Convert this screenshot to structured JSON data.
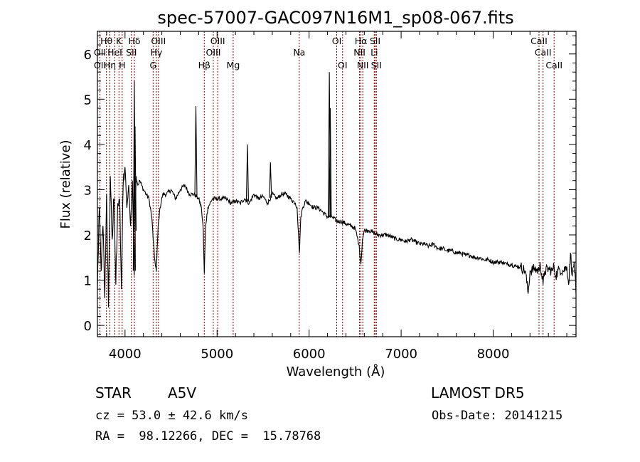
{
  "chart_data": {
    "type": "line",
    "title": "spec-57007-GAC097N16M1_sp08-067.fits",
    "xlabel": "Wavelength (Å)",
    "ylabel": "Flux (relative)",
    "xlim": [
      3700,
      8900
    ],
    "ylim": [
      -0.25,
      6.5
    ],
    "xticks": [
      4000,
      5000,
      6000,
      7000,
      8000
    ],
    "yticks": [
      0,
      1,
      2,
      3,
      4,
      5,
      6
    ],
    "grid": false,
    "series_color": "#000000",
    "marker_color": "#8b0000",
    "spectrum": {
      "x": [
        3700,
        3720,
        3740,
        3760,
        3780,
        3800,
        3820,
        3840,
        3860,
        3880,
        3900,
        3920,
        3940,
        3960,
        3980,
        4000,
        4020,
        4040,
        4060,
        4080,
        4100,
        4120,
        4140,
        4160,
        4180,
        4200,
        4230,
        4260,
        4290,
        4320,
        4340,
        4360,
        4380,
        4410,
        4450,
        4500,
        4550,
        4600,
        4650,
        4700,
        4750,
        4800,
        4830,
        4850,
        4861,
        4875,
        4900,
        4950,
        5000,
        5050,
        5100,
        5150,
        5200,
        5250,
        5300,
        5350,
        5400,
        5450,
        5500,
        5550,
        5600,
        5650,
        5700,
        5750,
        5800,
        5850,
        5870,
        5890,
        5895,
        5910,
        5930,
        5960,
        6000,
        6050,
        6100,
        6150,
        6200,
        6250,
        6300,
        6350,
        6400,
        6450,
        6500,
        6540,
        6563,
        6580,
        6600,
        6620,
        6650,
        6700,
        6750,
        6800,
        6850,
        6900,
        6950,
        7000,
        7050,
        7100,
        7150,
        7200,
        7250,
        7300,
        7350,
        7400,
        7450,
        7500,
        7550,
        7600,
        7650,
        7700,
        7750,
        7800,
        7850,
        7900,
        7950,
        8000,
        8050,
        8100,
        8150,
        8200,
        8250,
        8300,
        8350,
        8380,
        8400,
        8450,
        8498,
        8510,
        8542,
        8560,
        8600,
        8640,
        8662,
        8680,
        8720,
        8760,
        8800,
        8820,
        8840,
        8860,
        8880,
        8900
      ],
      "y": [
        0.8,
        2.6,
        1.2,
        2.2,
        0.6,
        2.9,
        0.4,
        3.3,
        1.9,
        2.8,
        0.9,
        2.7,
        2.8,
        0.8,
        3.1,
        3.5,
        2.6,
        3.1,
        2.2,
        3.2,
        1.1,
        3.3,
        3.1,
        3.2,
        3.1,
        3.0,
        2.9,
        2.8,
        2.4,
        1.5,
        1.2,
        2.2,
        2.6,
        2.9,
        2.9,
        3.0,
        2.8,
        3.0,
        3.1,
        2.9,
        2.9,
        2.8,
        2.6,
        2.1,
        1.15,
        2.2,
        2.6,
        2.8,
        2.8,
        2.8,
        2.8,
        2.7,
        2.75,
        2.7,
        2.8,
        2.7,
        2.9,
        2.8,
        2.85,
        2.7,
        2.9,
        2.8,
        2.9,
        2.9,
        2.8,
        2.7,
        2.6,
        1.8,
        1.6,
        2.4,
        2.6,
        2.75,
        2.7,
        2.6,
        2.6,
        2.5,
        2.4,
        2.4,
        2.3,
        2.3,
        2.25,
        2.2,
        2.15,
        1.8,
        1.35,
        1.9,
        2.1,
        2.1,
        2.1,
        2.05,
        2.0,
        2.0,
        2.0,
        1.95,
        1.9,
        1.9,
        1.85,
        1.9,
        1.85,
        1.8,
        1.8,
        1.75,
        1.8,
        1.7,
        1.7,
        1.65,
        1.65,
        1.6,
        1.6,
        1.55,
        1.55,
        1.5,
        1.5,
        1.45,
        1.45,
        1.4,
        1.4,
        1.4,
        1.35,
        1.35,
        1.3,
        1.3,
        1.2,
        0.7,
        1.2,
        1.25,
        1.2,
        1.4,
        0.9,
        1.2,
        1.25,
        1.2,
        1.3,
        1.1,
        1.25,
        1.2,
        1.3,
        0.9,
        1.6,
        1.1,
        1.4,
        0.7
      ]
    },
    "emission_spikes": [
      {
        "x": 4101,
        "y": 5.4
      },
      {
        "x": 4109,
        "y": 4.4
      },
      {
        "x": 4770,
        "y": 4.85
      },
      {
        "x": 5330,
        "y": 4.0
      },
      {
        "x": 5580,
        "y": 3.6
      },
      {
        "x": 6220,
        "y": 5.6
      },
      {
        "x": 6230,
        "y": 4.8
      }
    ],
    "line_markers": [
      {
        "label": "Hθ",
        "x": 3798,
        "row": 1
      },
      {
        "label": "OII",
        "x": 3727,
        "row": 2
      },
      {
        "label": "OII",
        "x": 3727,
        "row": 3
      },
      {
        "label": "Hη",
        "x": 3835,
        "row": 3
      },
      {
        "label": "HeI",
        "x": 3889,
        "row": 2
      },
      {
        "label": "K",
        "x": 3934,
        "row": 1
      },
      {
        "label": "H",
        "x": 3969,
        "row": 3
      },
      {
        "label": "Hδ",
        "x": 4102,
        "row": 1
      },
      {
        "label": "SII",
        "x": 4069,
        "row": 2
      },
      {
        "label": "OIII",
        "x": 4363,
        "row": 1
      },
      {
        "label": "Hγ",
        "x": 4341,
        "row": 2
      },
      {
        "label": "G",
        "x": 4305,
        "row": 3
      },
      {
        "label": "Hβ",
        "x": 4861,
        "row": 3
      },
      {
        "label": "OIII",
        "x": 5007,
        "row": 1
      },
      {
        "label": "OIII",
        "x": 4959,
        "row": 2
      },
      {
        "label": "Mg",
        "x": 5175,
        "row": 3
      },
      {
        "label": "Na",
        "x": 5893,
        "row": 2
      },
      {
        "label": "OI",
        "x": 6300,
        "row": 1
      },
      {
        "label": "OI",
        "x": 6364,
        "row": 3
      },
      {
        "label": "Hα",
        "x": 6563,
        "row": 1
      },
      {
        "label": "NII",
        "x": 6548,
        "row": 2
      },
      {
        "label": "NII",
        "x": 6583,
        "row": 3
      },
      {
        "label": "SII",
        "x": 6717,
        "row": 1
      },
      {
        "label": "Li",
        "x": 6708,
        "row": 2
      },
      {
        "label": "SII",
        "x": 6731,
        "row": 3
      },
      {
        "label": "CaII",
        "x": 8498,
        "row": 1
      },
      {
        "label": "CaII",
        "x": 8542,
        "row": 2
      },
      {
        "label": "CaII",
        "x": 8662,
        "row": 3
      }
    ]
  },
  "info": {
    "class_label": "STAR",
    "subclass": "A5V",
    "survey": "LAMOST DR5",
    "cz": "cz = 53.0 ± 42.6 km/s",
    "obs_date": "Obs-Date: 20141215",
    "coords": "RA =  98.12266, DEC =  15.78768"
  }
}
